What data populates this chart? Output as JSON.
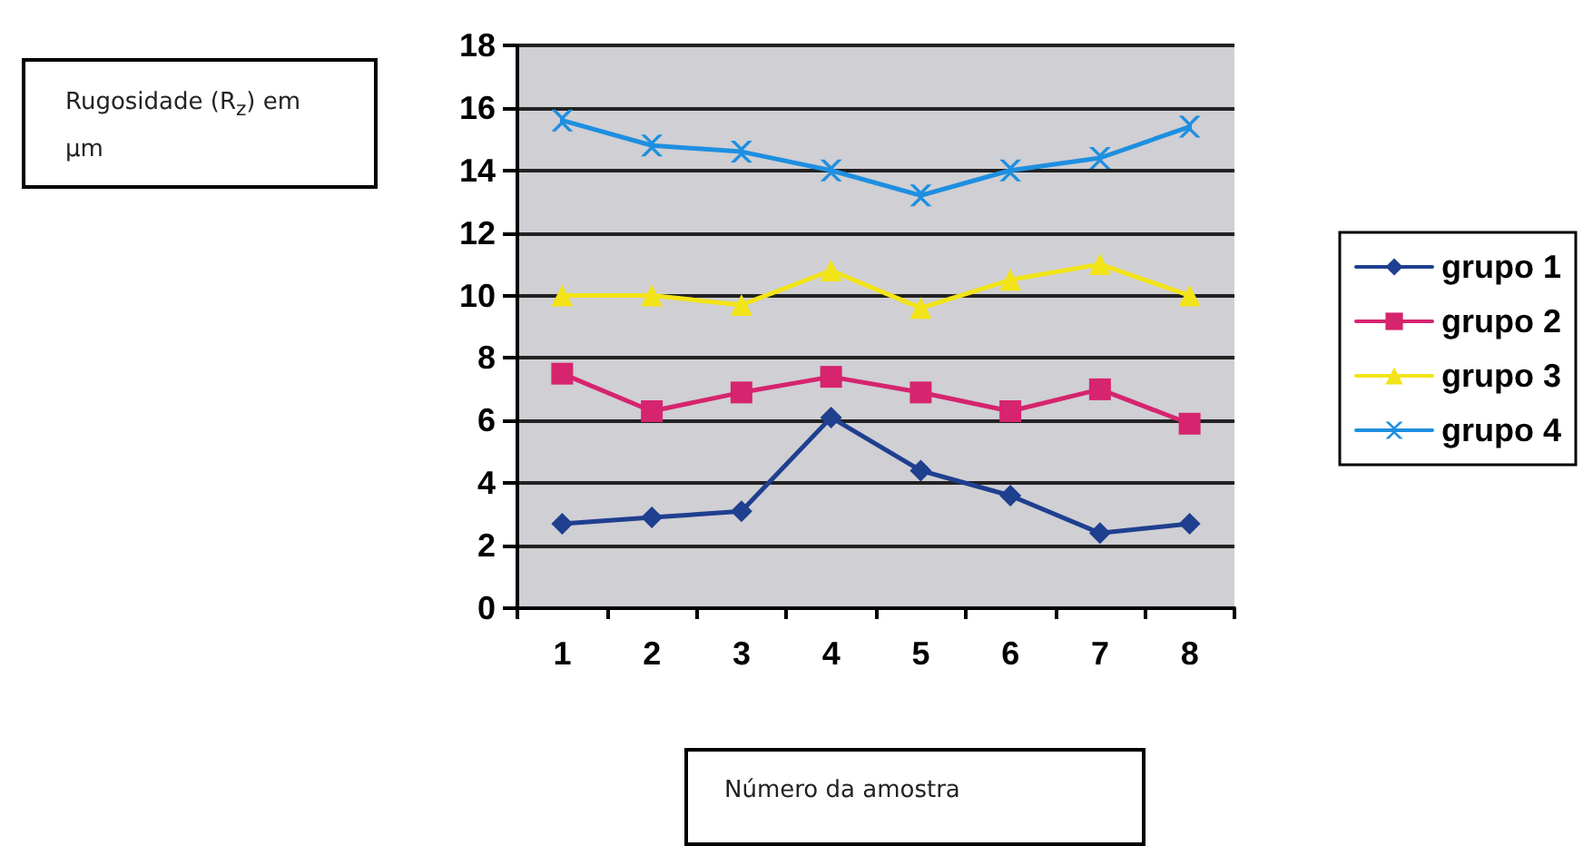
{
  "chart_data": {
    "type": "line",
    "xlabel": "Número da amostra",
    "ylabel": "Rugosidade (R$_{z}$) em µm",
    "categories": [
      "1",
      "2",
      "3",
      "4",
      "5",
      "6",
      "7",
      "8"
    ],
    "series": [
      {
        "name": "grupo 1",
        "color": "#1f3f8f",
        "marker": "diamond",
        "values": [
          2.7,
          2.9,
          3.1,
          6.1,
          4.4,
          3.6,
          2.4,
          2.7
        ]
      },
      {
        "name": "grupo 2",
        "color": "#d6246e",
        "marker": "square",
        "values": [
          7.5,
          6.3,
          6.9,
          7.4,
          6.9,
          6.3,
          7.0,
          5.9
        ]
      },
      {
        "name": "grupo 3",
        "color": "#f2e418",
        "marker": "triangle",
        "values": [
          10.0,
          10.0,
          9.7,
          10.8,
          9.6,
          10.5,
          11.0,
          10.0
        ]
      },
      {
        "name": "grupo 4",
        "color": "#1e8fe0",
        "marker": "cross",
        "values": [
          15.6,
          14.8,
          14.6,
          14.0,
          13.2,
          14.0,
          14.4,
          15.4
        ]
      }
    ],
    "ylim": [
      0,
      18
    ],
    "yticks": [
      0,
      2,
      4,
      6,
      8,
      10,
      12,
      14,
      16,
      18
    ],
    "grid": "y",
    "legend": "right"
  }
}
